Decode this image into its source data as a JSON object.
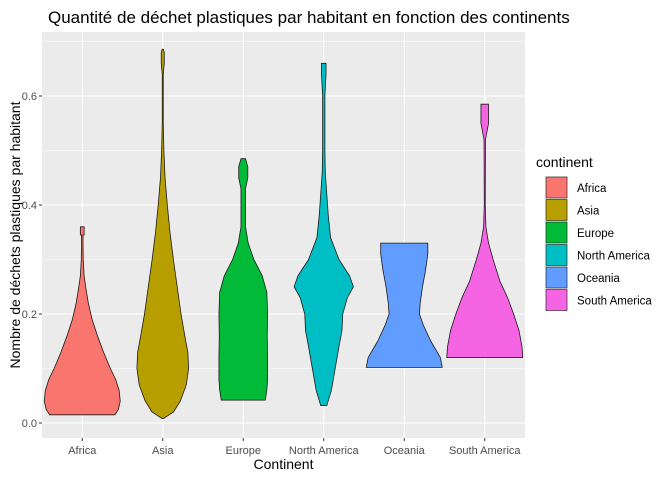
{
  "chart_data": {
    "type": "violin",
    "title": "Quantité de déchet plastiques par habitant en fonction des continents",
    "xlabel": "Continent",
    "ylabel": "Nombre de déchets plastiques par habitant",
    "ylim": [
      -0.02,
      0.72
    ],
    "yticks": [
      "0.0",
      "0.2",
      "0.4",
      "0.6"
    ],
    "ytick_values": [
      0.0,
      0.2,
      0.4,
      0.6
    ],
    "grid": true,
    "legend": {
      "title": "continent",
      "placement": "right"
    },
    "categories": [
      "Africa",
      "Asia",
      "Europe",
      "North America",
      "Oceania",
      "South America"
    ],
    "colors": [
      "#F8766D",
      "#B79F00",
      "#00BA38",
      "#00BFC4",
      "#619CFF",
      "#F564E3"
    ],
    "series": [
      {
        "name": "Africa",
        "profile": [
          [
            0.015,
            0.86
          ],
          [
            0.025,
            0.95
          ],
          [
            0.04,
            1.0
          ],
          [
            0.06,
            0.97
          ],
          [
            0.08,
            0.88
          ],
          [
            0.1,
            0.74
          ],
          [
            0.13,
            0.56
          ],
          [
            0.16,
            0.4
          ],
          [
            0.19,
            0.26
          ],
          [
            0.22,
            0.16
          ],
          [
            0.25,
            0.09
          ],
          [
            0.27,
            0.05
          ],
          [
            0.3,
            0.025
          ],
          [
            0.33,
            0.02
          ],
          [
            0.345,
            0.02
          ],
          [
            0.345,
            0.05
          ],
          [
            0.36,
            0.05
          ]
        ]
      },
      {
        "name": "Asia",
        "profile": [
          [
            0.008,
            0.0
          ],
          [
            0.02,
            0.28
          ],
          [
            0.04,
            0.46
          ],
          [
            0.07,
            0.62
          ],
          [
            0.1,
            0.68
          ],
          [
            0.13,
            0.66
          ],
          [
            0.16,
            0.58
          ],
          [
            0.2,
            0.48
          ],
          [
            0.25,
            0.38
          ],
          [
            0.3,
            0.28
          ],
          [
            0.35,
            0.19
          ],
          [
            0.4,
            0.12
          ],
          [
            0.45,
            0.06
          ],
          [
            0.5,
            0.03
          ],
          [
            0.55,
            0.01
          ],
          [
            0.6,
            0.004
          ],
          [
            0.64,
            0.004
          ],
          [
            0.66,
            0.04
          ],
          [
            0.68,
            0.04
          ],
          [
            0.686,
            0.0
          ]
        ]
      },
      {
        "name": "Europe",
        "profile": [
          [
            0.042,
            0.58
          ],
          [
            0.06,
            0.62
          ],
          [
            0.08,
            0.64
          ],
          [
            0.12,
            0.64
          ],
          [
            0.16,
            0.63
          ],
          [
            0.2,
            0.64
          ],
          [
            0.24,
            0.62
          ],
          [
            0.27,
            0.5
          ],
          [
            0.3,
            0.28
          ],
          [
            0.33,
            0.13
          ],
          [
            0.36,
            0.06
          ],
          [
            0.4,
            0.06
          ],
          [
            0.43,
            0.06
          ],
          [
            0.45,
            0.12
          ],
          [
            0.47,
            0.12
          ],
          [
            0.485,
            0.06
          ]
        ]
      },
      {
        "name": "North America",
        "profile": [
          [
            0.032,
            0.08
          ],
          [
            0.06,
            0.2
          ],
          [
            0.1,
            0.3
          ],
          [
            0.14,
            0.4
          ],
          [
            0.17,
            0.48
          ],
          [
            0.2,
            0.5
          ],
          [
            0.23,
            0.62
          ],
          [
            0.25,
            0.78
          ],
          [
            0.27,
            0.68
          ],
          [
            0.3,
            0.4
          ],
          [
            0.34,
            0.18
          ],
          [
            0.38,
            0.12
          ],
          [
            0.42,
            0.08
          ],
          [
            0.46,
            0.04
          ],
          [
            0.5,
            0.03
          ],
          [
            0.55,
            0.03
          ],
          [
            0.6,
            0.03
          ],
          [
            0.64,
            0.06
          ],
          [
            0.66,
            0.06
          ]
        ]
      },
      {
        "name": "Oceania",
        "profile": [
          [
            0.102,
            1.0
          ],
          [
            0.12,
            0.95
          ],
          [
            0.15,
            0.7
          ],
          [
            0.18,
            0.5
          ],
          [
            0.2,
            0.4
          ],
          [
            0.22,
            0.42
          ],
          [
            0.25,
            0.48
          ],
          [
            0.28,
            0.56
          ],
          [
            0.31,
            0.62
          ],
          [
            0.33,
            0.62
          ]
        ]
      },
      {
        "name": "South America",
        "profile": [
          [
            0.12,
            1.0
          ],
          [
            0.14,
            0.98
          ],
          [
            0.17,
            0.9
          ],
          [
            0.2,
            0.76
          ],
          [
            0.23,
            0.6
          ],
          [
            0.26,
            0.4
          ],
          [
            0.3,
            0.22
          ],
          [
            0.33,
            0.1
          ],
          [
            0.36,
            0.03
          ],
          [
            0.4,
            0.01
          ],
          [
            0.46,
            0.015
          ],
          [
            0.52,
            0.02
          ],
          [
            0.55,
            0.1
          ],
          [
            0.58,
            0.1
          ],
          [
            0.585,
            0.1
          ]
        ]
      }
    ]
  }
}
